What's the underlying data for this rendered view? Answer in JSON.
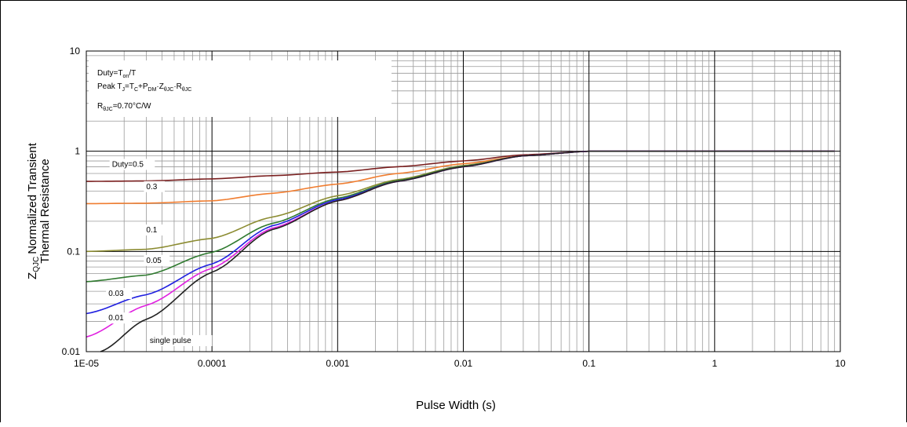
{
  "chart_data": {
    "type": "line",
    "title": "",
    "xlabel": "Pulse Width (s)",
    "ylabel_line1": "Normalized Transient",
    "ylabel_line2": "Thermal Resistance",
    "ylabel_symbol": "Z",
    "ylabel_subscript": "QJC",
    "x_scale": "log",
    "y_scale": "log",
    "xlim": [
      1e-05,
      10
    ],
    "ylim": [
      0.01,
      10
    ],
    "x_ticks": [
      {
        "value": 1e-05,
        "label": "1E-05"
      },
      {
        "value": 0.0001,
        "label": "0.0001"
      },
      {
        "value": 0.001,
        "label": "0.001"
      },
      {
        "value": 0.01,
        "label": "0.01"
      },
      {
        "value": 0.1,
        "label": "0.1"
      },
      {
        "value": 1,
        "label": "1"
      },
      {
        "value": 10,
        "label": "10"
      }
    ],
    "y_ticks": [
      {
        "value": 0.01,
        "label": "0.01"
      },
      {
        "value": 0.1,
        "label": "0.1"
      },
      {
        "value": 1,
        "label": "1"
      },
      {
        "value": 10,
        "label": "10"
      }
    ],
    "grid": true,
    "annotations": {
      "duty_text": "Duty=T",
      "duty_sub": "on",
      "duty_rest": "/T",
      "peak_text": "Peak T",
      "peak_sub1": "J",
      "peak_eq": "=T",
      "peak_sub2": "C",
      "peak_plus": "+P",
      "peak_sub3": "DM",
      "peak_dot": "·Z",
      "peak_sub4": "θJC",
      "peak_dot2": "·R",
      "peak_sub5": "θJC",
      "r_text": "R",
      "r_sub": "θJC",
      "r_value": "=0.70°C/W"
    },
    "series": [
      {
        "label": "Duty=0.5",
        "color": "#7a1f1f",
        "x": [
          1e-05,
          3e-05,
          0.0001,
          0.0003,
          0.001,
          0.003,
          0.01,
          0.03,
          0.1,
          1,
          9
        ],
        "y": [
          0.5,
          0.505,
          0.53,
          0.57,
          0.62,
          0.7,
          0.8,
          0.92,
          1.0,
          1.0,
          1.0
        ]
      },
      {
        "label": "0.3",
        "color": "#f07d30",
        "x": [
          1e-05,
          3e-05,
          0.0001,
          0.0003,
          0.001,
          0.003,
          0.01,
          0.03,
          0.1,
          1,
          9
        ],
        "y": [
          0.3,
          0.303,
          0.32,
          0.38,
          0.47,
          0.6,
          0.75,
          0.9,
          1.0,
          1.0,
          1.0
        ]
      },
      {
        "label": "0.1",
        "color": "#8c8c32",
        "x": [
          1e-05,
          3e-05,
          0.0001,
          0.0003,
          0.001,
          0.003,
          0.01,
          0.03,
          0.1,
          1,
          9
        ],
        "y": [
          0.1,
          0.105,
          0.135,
          0.22,
          0.36,
          0.52,
          0.72,
          0.9,
          1.0,
          1.0,
          1.0
        ]
      },
      {
        "label": "0.05",
        "color": "#2f7a2f",
        "x": [
          1e-05,
          3e-05,
          0.0001,
          0.0003,
          0.001,
          0.003,
          0.01,
          0.03,
          0.1,
          1,
          9
        ],
        "y": [
          0.05,
          0.058,
          0.098,
          0.19,
          0.34,
          0.51,
          0.71,
          0.9,
          1.0,
          1.0,
          1.0
        ]
      },
      {
        "label": "0.03",
        "color": "#2020e0",
        "x": [
          1e-05,
          3e-05,
          0.0001,
          0.0003,
          0.001,
          0.003,
          0.01,
          0.03,
          0.1,
          1,
          9
        ],
        "y": [
          0.024,
          0.037,
          0.075,
          0.18,
          0.33,
          0.5,
          0.7,
          0.9,
          1.0,
          1.0,
          1.0
        ]
      },
      {
        "label": "0.01",
        "color": "#e020e0",
        "x": [
          1e-05,
          3e-05,
          0.0001,
          0.0003,
          0.001,
          0.003,
          0.01,
          0.03,
          0.1,
          1,
          9
        ],
        "y": [
          0.014,
          0.029,
          0.068,
          0.17,
          0.32,
          0.5,
          0.7,
          0.9,
          1.0,
          1.0,
          1.0
        ]
      },
      {
        "label": "single pulse",
        "color": "#222222",
        "x": [
          1.3e-05,
          3e-05,
          0.0001,
          0.0003,
          0.001,
          0.003,
          0.01,
          0.03,
          0.1,
          1,
          9
        ],
        "y": [
          0.01,
          0.021,
          0.062,
          0.165,
          0.32,
          0.5,
          0.7,
          0.9,
          1.0,
          1.0,
          1.0
        ]
      }
    ]
  }
}
